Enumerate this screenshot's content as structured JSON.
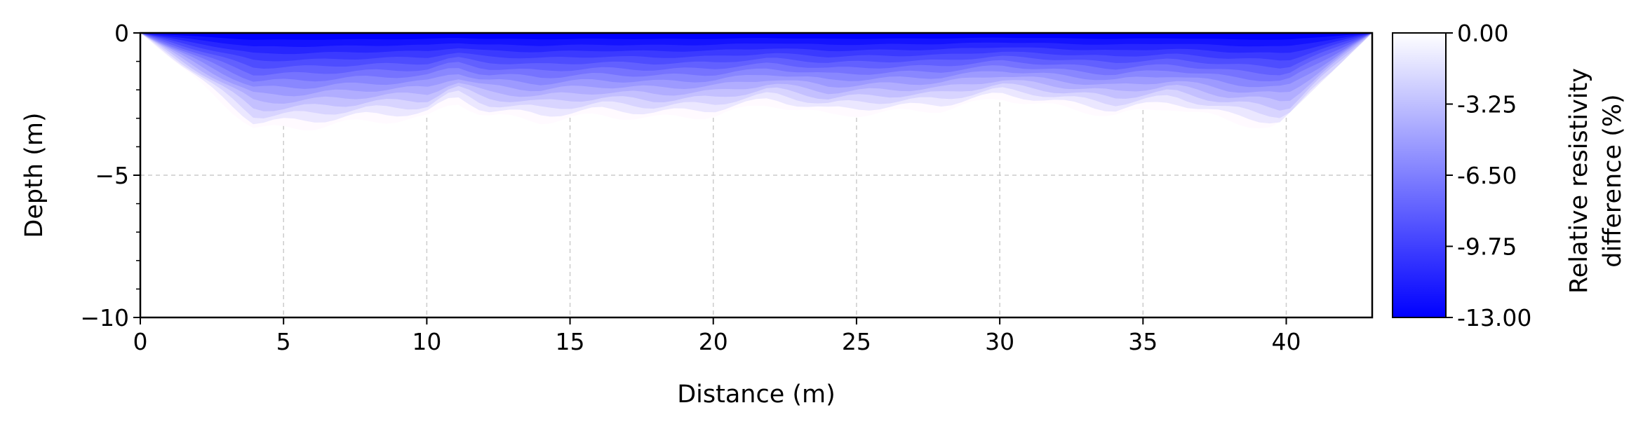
{
  "chart_data": {
    "type": "heatmap",
    "title": "",
    "xlabel": "Distance (m)",
    "ylabel": "Depth (m)",
    "xlim": [
      0,
      43
    ],
    "ylim": [
      -10,
      0
    ],
    "x_ticks": [
      0,
      5,
      10,
      15,
      20,
      25,
      30,
      35,
      40
    ],
    "x_tick_labels": [
      "0",
      "5",
      "10",
      "15",
      "20",
      "25",
      "30",
      "35",
      "40"
    ],
    "y_ticks": [
      0,
      -5,
      -10
    ],
    "y_tick_labels": [
      "0",
      "−5",
      "−10"
    ],
    "grid": true,
    "colormap": [
      "#0000ff",
      "#ffffff"
    ],
    "colorbar": {
      "label_line1": "Relative resistivity",
      "label_line2": "difference (%)",
      "range": [
        -13,
        0
      ],
      "ticks": [
        0,
        -3.25,
        -6.5,
        -9.75,
        -13
      ],
      "tick_labels": [
        "0.00",
        "-3.25",
        "-6.50",
        "-9.75",
        "-13.00"
      ]
    },
    "survey_boundary": {
      "x": [
        0,
        3.9,
        39.2,
        43
      ],
      "depth": [
        0,
        -3.8,
        -3.7,
        0
      ]
    },
    "anomaly_profile": {
      "x": [
        0,
        2,
        4,
        6,
        8,
        10,
        11,
        12,
        14,
        16,
        18,
        20,
        22,
        24,
        26,
        28,
        30,
        32,
        34,
        36,
        38,
        40,
        43
      ],
      "bottom_depth": [
        0,
        -1.7,
        -3.4,
        -3.3,
        -3.1,
        -3.0,
        -2.4,
        -2.9,
        -3.1,
        -2.9,
        -3.0,
        -2.9,
        -2.5,
        -2.9,
        -2.8,
        -2.7,
        -2.3,
        -2.6,
        -2.9,
        -2.6,
        -3.1,
        -3.4,
        0
      ],
      "min_value": -13,
      "max_value": 0
    }
  }
}
